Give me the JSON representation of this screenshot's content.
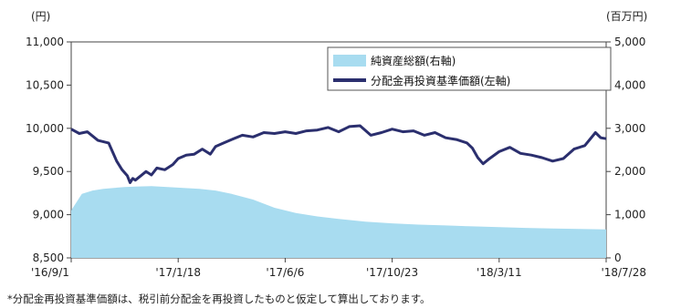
{
  "chart_data": {
    "type": "line",
    "left_unit": "(円)",
    "right_unit": "(百万円)",
    "y_left": {
      "min": 8500,
      "max": 11000,
      "ticks": [
        "11,000",
        "10,500",
        "10,000",
        "9,500",
        "9,000",
        "8,500"
      ],
      "tick_values": [
        11000,
        10500,
        10000,
        9500,
        9000,
        8500
      ]
    },
    "y_right": {
      "min": 0,
      "max": 5000,
      "ticks": [
        "5,000",
        "4,000",
        "3,000",
        "2,000",
        "1,000",
        "0"
      ],
      "tick_values": [
        5000,
        4000,
        3000,
        2000,
        1000,
        0
      ]
    },
    "x_ticks": [
      "'16/9/1",
      "'17/1/18",
      "'17/6/6",
      "'17/10/23",
      "'18/3/11",
      "'18/7/28"
    ],
    "x_tick_positions": [
      0,
      0.2,
      0.4,
      0.6,
      0.8,
      1.0
    ],
    "legend": [
      {
        "label": "純資産総額(右軸)",
        "color": "#a8dcf0",
        "kind": "area"
      },
      {
        "label": "分配金再投資基準価額(左軸)",
        "color": "#2b2f6e",
        "kind": "line"
      }
    ],
    "series": [
      {
        "name": "分配金再投資基準価額(左軸)",
        "axis": "left",
        "x": [
          0,
          0.015,
          0.03,
          0.05,
          0.07,
          0.085,
          0.095,
          0.105,
          0.11,
          0.115,
          0.12,
          0.13,
          0.14,
          0.15,
          0.16,
          0.175,
          0.19,
          0.2,
          0.215,
          0.23,
          0.245,
          0.26,
          0.27,
          0.285,
          0.3,
          0.32,
          0.34,
          0.36,
          0.38,
          0.4,
          0.42,
          0.44,
          0.46,
          0.48,
          0.5,
          0.52,
          0.54,
          0.56,
          0.58,
          0.6,
          0.62,
          0.64,
          0.66,
          0.68,
          0.7,
          0.72,
          0.74,
          0.75,
          0.76,
          0.77,
          0.78,
          0.8,
          0.82,
          0.84,
          0.86,
          0.88,
          0.9,
          0.92,
          0.94,
          0.96,
          0.98,
          0.99,
          1.0
        ],
        "y": [
          9990,
          9940,
          9960,
          9860,
          9830,
          9620,
          9520,
          9450,
          9370,
          9420,
          9400,
          9450,
          9500,
          9460,
          9540,
          9520,
          9580,
          9650,
          9690,
          9700,
          9760,
          9700,
          9790,
          9830,
          9870,
          9920,
          9900,
          9950,
          9940,
          9960,
          9940,
          9970,
          9980,
          10010,
          9960,
          10020,
          10030,
          9920,
          9950,
          9990,
          9960,
          9970,
          9920,
          9950,
          9890,
          9870,
          9830,
          9770,
          9660,
          9590,
          9640,
          9730,
          9780,
          9710,
          9690,
          9660,
          9620,
          9650,
          9760,
          9800,
          9950,
          9890,
          9880
        ]
      },
      {
        "name": "純資産総額(右軸)",
        "axis": "right",
        "x": [
          0,
          0.02,
          0.04,
          0.06,
          0.08,
          0.1,
          0.12,
          0.15,
          0.18,
          0.21,
          0.24,
          0.27,
          0.3,
          0.34,
          0.38,
          0.42,
          0.46,
          0.5,
          0.55,
          0.6,
          0.65,
          0.7,
          0.75,
          0.8,
          0.85,
          0.9,
          0.95,
          1.0
        ],
        "y": [
          1100,
          1480,
          1560,
          1600,
          1620,
          1640,
          1650,
          1660,
          1640,
          1620,
          1600,
          1560,
          1480,
          1350,
          1160,
          1040,
          960,
          900,
          840,
          800,
          770,
          750,
          730,
          710,
          695,
          680,
          670,
          660
        ]
      }
    ],
    "footnote": "*分配金再投資基準価額は、税引前分配金を再投資したものと仮定して算出しております。"
  }
}
